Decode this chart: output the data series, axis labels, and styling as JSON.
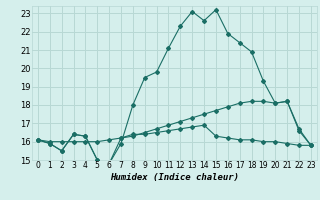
{
  "xlabel": "Humidex (Indice chaleur)",
  "xlim": [
    -0.5,
    23.5
  ],
  "ylim": [
    15,
    23.4
  ],
  "yticks": [
    15,
    16,
    17,
    18,
    19,
    20,
    21,
    22,
    23
  ],
  "xticks": [
    0,
    1,
    2,
    3,
    4,
    5,
    6,
    7,
    8,
    9,
    10,
    11,
    12,
    13,
    14,
    15,
    16,
    17,
    18,
    19,
    20,
    21,
    22,
    23
  ],
  "background_color": "#d5efec",
  "grid_color": "#b8d8d4",
  "line_color": "#1a6e65",
  "line1_x": [
    0,
    1,
    2,
    3,
    4,
    5,
    6,
    7,
    8,
    9,
    10,
    11,
    12,
    13,
    14,
    15,
    16,
    17,
    18,
    19,
    20,
    21,
    22,
    23
  ],
  "line1_y": [
    16.1,
    15.9,
    15.5,
    16.4,
    16.3,
    15.0,
    14.8,
    15.9,
    18.0,
    19.5,
    19.8,
    21.1,
    22.3,
    23.1,
    22.6,
    23.2,
    21.9,
    21.4,
    20.9,
    19.3,
    18.1,
    18.2,
    16.6,
    15.8
  ],
  "line2_x": [
    0,
    1,
    2,
    3,
    4,
    5,
    6,
    7,
    8,
    9,
    10,
    11,
    12,
    13,
    14,
    15,
    16,
    17,
    18,
    19,
    20,
    21,
    22,
    23
  ],
  "line2_y": [
    16.1,
    16.0,
    16.0,
    16.0,
    16.0,
    16.0,
    16.1,
    16.2,
    16.3,
    16.5,
    16.7,
    16.9,
    17.1,
    17.3,
    17.5,
    17.7,
    17.9,
    18.1,
    18.2,
    18.2,
    18.1,
    18.2,
    16.7,
    15.8
  ],
  "line3_x": [
    0,
    1,
    2,
    3,
    4,
    5,
    6,
    7,
    8,
    9,
    10,
    11,
    12,
    13,
    14,
    15,
    16,
    17,
    18,
    19,
    20,
    21,
    22,
    23
  ],
  "line3_y": [
    16.1,
    15.9,
    15.5,
    16.4,
    16.3,
    15.0,
    14.8,
    16.2,
    16.4,
    16.4,
    16.5,
    16.6,
    16.7,
    16.8,
    16.9,
    16.3,
    16.2,
    16.1,
    16.1,
    16.0,
    16.0,
    15.9,
    15.8,
    15.8
  ]
}
